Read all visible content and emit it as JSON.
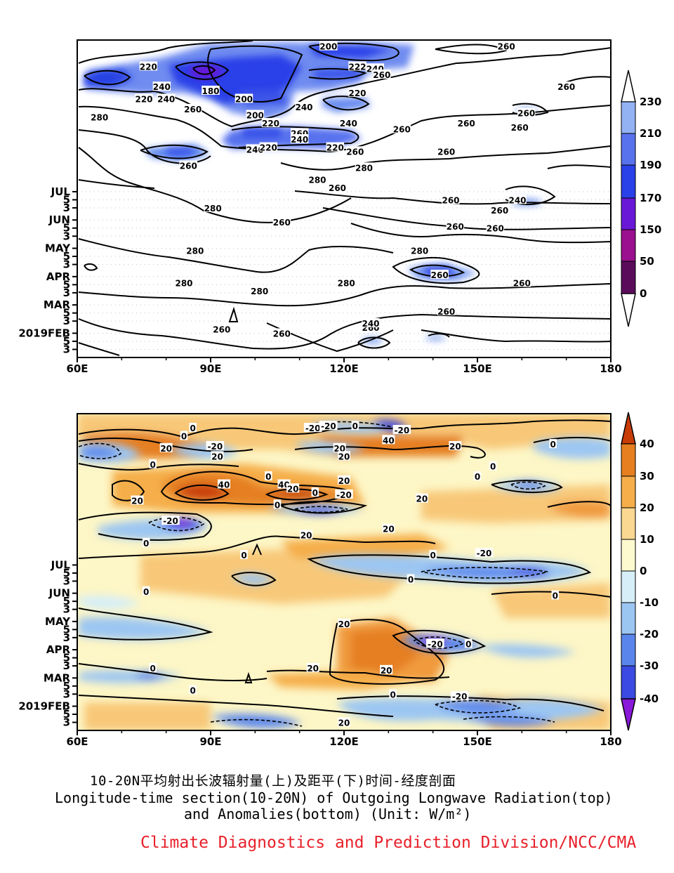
{
  "chart_data": [
    {
      "type": "heatmap",
      "title": "",
      "x_ticks": [
        "60E",
        "90E",
        "120E",
        "150E",
        "180"
      ],
      "x_values": [
        60,
        90,
        120,
        150,
        180
      ],
      "y_ticks": [
        "3",
        "5",
        "2019FEB",
        "3",
        "5",
        "MAR",
        "3",
        "5",
        "APR",
        "3",
        "5",
        "MAY",
        "3",
        "5",
        "JUN",
        "3",
        "5",
        "JUL"
      ],
      "colorbar": {
        "ticks": [
          "0",
          "50",
          "150",
          "170",
          "190",
          "210",
          "230"
        ],
        "colors": [
          "#5a0c5a",
          "#9a108e",
          "#6a18d8",
          "#2a40e8",
          "#5872ee",
          "#92b2f4"
        ]
      },
      "contour_labels": [
        {
          "t": "200",
          "lon": 116.5,
          "day": 162
        },
        {
          "t": "260",
          "lon": 156.5,
          "day": 162
        },
        {
          "t": "220",
          "lon": 76,
          "day": 157
        },
        {
          "t": "222",
          "lon": 123,
          "day": 157
        },
        {
          "t": "240",
          "lon": 127,
          "day": 156.5
        },
        {
          "t": "260",
          "lon": 128.5,
          "day": 155
        },
        {
          "t": "240",
          "lon": 79,
          "day": 152
        },
        {
          "t": "180",
          "lon": 90,
          "day": 151
        },
        {
          "t": "260",
          "lon": 170,
          "day": 152
        },
        {
          "t": "220",
          "lon": 123,
          "day": 150.5
        },
        {
          "t": "220",
          "lon": 75,
          "day": 149
        },
        {
          "t": "240",
          "lon": 80,
          "day": 149
        },
        {
          "t": "200",
          "lon": 97.5,
          "day": 149
        },
        {
          "t": "240",
          "lon": 111,
          "day": 147
        },
        {
          "t": "260",
          "lon": 86,
          "day": 146.5
        },
        {
          "t": "280",
          "lon": 65,
          "day": 144.5
        },
        {
          "t": "200",
          "lon": 100,
          "day": 145
        },
        {
          "t": "260",
          "lon": 161,
          "day": 145.5
        },
        {
          "t": "220",
          "lon": 103.5,
          "day": 143
        },
        {
          "t": "240",
          "lon": 121,
          "day": 143
        },
        {
          "t": "260",
          "lon": 147.5,
          "day": 143
        },
        {
          "t": "260",
          "lon": 159.5,
          "day": 142
        },
        {
          "t": "260",
          "lon": 133,
          "day": 141.5
        },
        {
          "t": "260",
          "lon": 110,
          "day": 140.5
        },
        {
          "t": "240",
          "lon": 110,
          "day": 139
        },
        {
          "t": "240",
          "lon": 100,
          "day": 136.5
        },
        {
          "t": "220",
          "lon": 103,
          "day": 137
        },
        {
          "t": "220",
          "lon": 118,
          "day": 137
        },
        {
          "t": "260",
          "lon": 122.5,
          "day": 136
        },
        {
          "t": "260",
          "lon": 143,
          "day": 136
        },
        {
          "t": "260",
          "lon": 85,
          "day": 132.5
        },
        {
          "t": "280",
          "lon": 124.5,
          "day": 132
        },
        {
          "t": "280",
          "lon": 114,
          "day": 129
        },
        {
          "t": "260",
          "lon": 118.5,
          "day": 127
        },
        {
          "t": "260",
          "lon": 144,
          "day": 124
        },
        {
          "t": "240",
          "lon": 159,
          "day": 124
        },
        {
          "t": "280",
          "lon": 90.5,
          "day": 122
        },
        {
          "t": "260",
          "lon": 155,
          "day": 121.5
        },
        {
          "t": "260",
          "lon": 106,
          "day": 118.5
        },
        {
          "t": "260",
          "lon": 145,
          "day": 117.5
        },
        {
          "t": "260",
          "lon": 154,
          "day": 117
        },
        {
          "t": "280",
          "lon": 86.5,
          "day": 111.5
        },
        {
          "t": "280",
          "lon": 137,
          "day": 111.5
        },
        {
          "t": "260",
          "lon": 141.5,
          "day": 105.5
        },
        {
          "t": "280",
          "lon": 84,
          "day": 103.5
        },
        {
          "t": "280",
          "lon": 120.5,
          "day": 103.5
        },
        {
          "t": "260",
          "lon": 160,
          "day": 103.5
        },
        {
          "t": "280",
          "lon": 101,
          "day": 101.5
        },
        {
          "t": "260",
          "lon": 143,
          "day": 96.5
        },
        {
          "t": "260",
          "lon": 126,
          "day": 92.5
        },
        {
          "t": "240",
          "lon": 126,
          "day": 93.5
        },
        {
          "t": "260",
          "lon": 92.5,
          "day": 92
        },
        {
          "t": "260",
          "lon": 106,
          "day": 91
        }
      ]
    },
    {
      "type": "heatmap",
      "title": "",
      "x_ticks": [
        "60E",
        "90E",
        "120E",
        "150E",
        "180"
      ],
      "x_values": [
        60,
        90,
        120,
        150,
        180
      ],
      "y_ticks": [
        "3",
        "5",
        "2019FEB",
        "3",
        "5",
        "MAR",
        "3",
        "5",
        "APR",
        "3",
        "5",
        "MAY",
        "3",
        "5",
        "JUN",
        "3",
        "5",
        "JUL"
      ],
      "colorbar": {
        "ticks": [
          "40",
          "30",
          "20",
          "10",
          "0",
          "-10",
          "-20",
          "-30",
          "-40"
        ],
        "colors": [
          "#c83c08",
          "#e57f20",
          "#f5ae4a",
          "#fad892",
          "#fefad0",
          "#d6eef8",
          "#9cc6f2",
          "#5a86ec",
          "#3a4ae2",
          "#8a18d8"
        ]
      },
      "contour_labels": [
        {
          "t": "0",
          "lon": 86,
          "day": 160
        },
        {
          "t": "-20",
          "lon": 113,
          "day": 160
        },
        {
          "t": "-20",
          "lon": 116.5,
          "day": 160.5
        },
        {
          "t": "0",
          "lon": 122.5,
          "day": 160.5
        },
        {
          "t": "-20",
          "lon": 133,
          "day": 159.5
        },
        {
          "t": "40",
          "lon": 130,
          "day": 157
        },
        {
          "t": "0",
          "lon": 84,
          "day": 158
        },
        {
          "t": "20",
          "lon": 80,
          "day": 155
        },
        {
          "t": "-20",
          "lon": 91,
          "day": 155.5
        },
        {
          "t": "20",
          "lon": 119,
          "day": 155
        },
        {
          "t": "20",
          "lon": 145,
          "day": 155.5
        },
        {
          "t": "0",
          "lon": 167,
          "day": 156
        },
        {
          "t": "20",
          "lon": 91.5,
          "day": 153
        },
        {
          "t": "20",
          "lon": 120,
          "day": 153
        },
        {
          "t": "0",
          "lon": 77,
          "day": 151
        },
        {
          "t": "0",
          "lon": 153.5,
          "day": 150.5
        },
        {
          "t": "0",
          "lon": 103,
          "day": 148
        },
        {
          "t": "0",
          "lon": 150,
          "day": 148
        },
        {
          "t": "40",
          "lon": 93,
          "day": 146
        },
        {
          "t": "40",
          "lon": 106.5,
          "day": 146
        },
        {
          "t": "20",
          "lon": 120,
          "day": 147
        },
        {
          "t": "20",
          "lon": 108.5,
          "day": 145
        },
        {
          "t": "0",
          "lon": 113.5,
          "day": 144
        },
        {
          "t": "-20",
          "lon": 120,
          "day": 143.5
        },
        {
          "t": "20",
          "lon": 73.5,
          "day": 142
        },
        {
          "t": "0",
          "lon": 105,
          "day": 141
        },
        {
          "t": "20",
          "lon": 137.5,
          "day": 142.5
        },
        {
          "t": "-20",
          "lon": 81,
          "day": 137
        },
        {
          "t": "20",
          "lon": 111.5,
          "day": 133.5
        },
        {
          "t": "20",
          "lon": 130,
          "day": 135
        },
        {
          "t": "0",
          "lon": 75.5,
          "day": 131.5
        },
        {
          "t": "0",
          "lon": 97.5,
          "day": 128.5
        },
        {
          "t": "-20",
          "lon": 151.5,
          "day": 129
        },
        {
          "t": "0",
          "lon": 140,
          "day": 128.5
        },
        {
          "t": "0",
          "lon": 135,
          "day": 122.5
        },
        {
          "t": "0",
          "lon": 75.5,
          "day": 119.5
        },
        {
          "t": "0",
          "lon": 167.5,
          "day": 118.5
        },
        {
          "t": "20",
          "lon": 120,
          "day": 111.5
        },
        {
          "t": "-20",
          "lon": 140.5,
          "day": 106.5
        },
        {
          "t": "0",
          "lon": 148,
          "day": 106.5
        },
        {
          "t": "0",
          "lon": 77,
          "day": 100.5
        },
        {
          "t": "20",
          "lon": 113,
          "day": 100.5
        },
        {
          "t": "20",
          "lon": 129.5,
          "day": 100
        },
        {
          "t": "0",
          "lon": 86,
          "day": 95
        },
        {
          "t": "0",
          "lon": 131,
          "day": 94
        },
        {
          "t": "-20",
          "lon": 146,
          "day": 93.5
        },
        {
          "t": "20",
          "lon": 120,
          "day": 87
        }
      ]
    }
  ],
  "caption": {
    "line1": "10-20N平均射出长波辐射量(上)及距平(下)时间-经度剖面",
    "line2": "Longitude-time section(10-20N) of Outgoing Longwave Radiation(top)",
    "line3": "and Anomalies(bottom) (Unit: W/m²)",
    "credit": "Climate Diagnostics and Prediction Division/NCC/CMA"
  }
}
